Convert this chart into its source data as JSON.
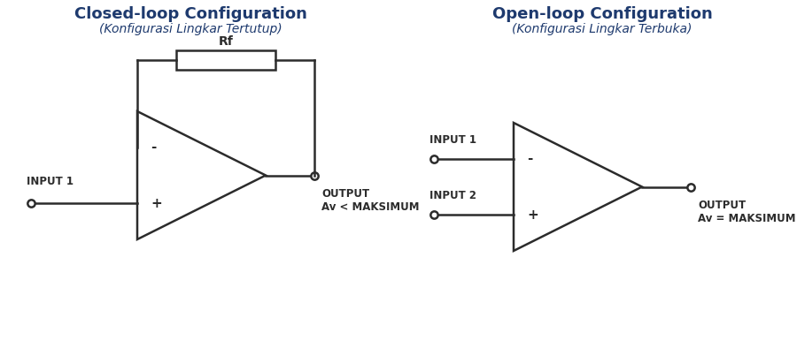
{
  "bg_color": "#ffffff",
  "title_color": "#1e3a6e",
  "line_color": "#2c2c2c",
  "left_title": "Closed-loop Configuration",
  "left_subtitle": "(Konfigurasi Lingkar Tertutup)",
  "right_title": "Open-loop Configuration",
  "right_subtitle": "(Konfigurasi Lingkar Terbuka)",
  "rf_label": "Rf",
  "left_input_label": "INPUT 1",
  "left_output_label": "OUTPUT\nAv < MAKSIMUM",
  "right_input1_label": "INPUT 1",
  "right_input2_label": "INPUT 2",
  "right_output_label": "OUTPUT\nAv = MAKSIMUM",
  "minus_label": "-",
  "plus_label": "+"
}
